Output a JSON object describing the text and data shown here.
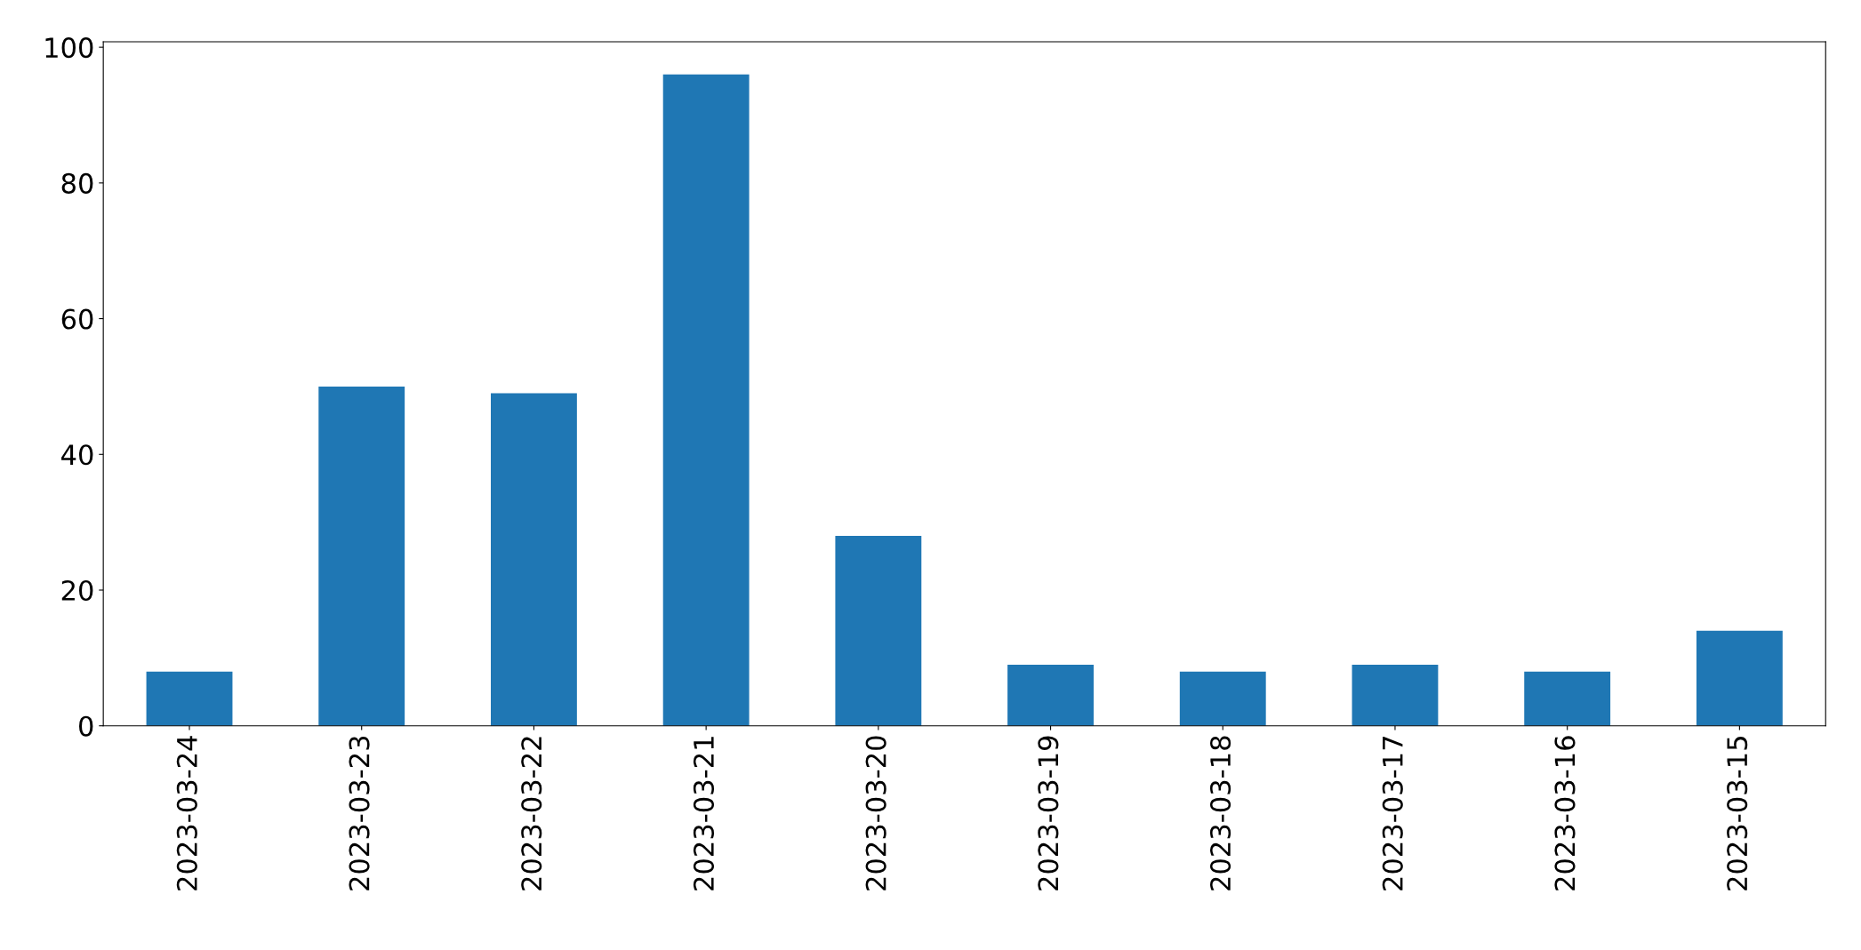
{
  "chart_data": {
    "type": "bar",
    "categories": [
      "2023-03-24",
      "2023-03-23",
      "2023-03-22",
      "2023-03-21",
      "2023-03-20",
      "2023-03-19",
      "2023-03-18",
      "2023-03-17",
      "2023-03-16",
      "2023-03-15"
    ],
    "values": [
      8,
      50,
      49,
      96,
      28,
      9,
      8,
      9,
      8,
      14
    ],
    "color": "#1f77b4",
    "ylim": [
      0,
      100.8
    ],
    "yticks": [
      0,
      20,
      40,
      60,
      80,
      100
    ],
    "grid": false
  }
}
